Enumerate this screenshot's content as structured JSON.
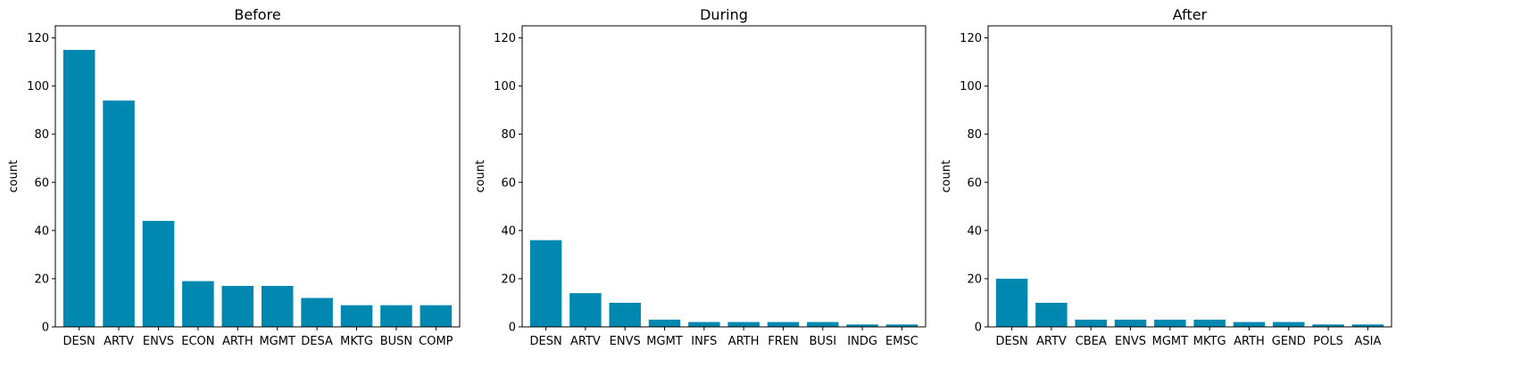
{
  "style": {
    "bar_color": "#0088b0",
    "axis_color": "#000000",
    "background": "#ffffff"
  },
  "chart_data": [
    {
      "type": "bar",
      "title": "Before",
      "xlabel": "",
      "ylabel": "count",
      "ylim": [
        0,
        125
      ],
      "yticks": [
        0,
        20,
        40,
        60,
        80,
        100,
        120
      ],
      "grid": false,
      "categories": [
        "DESN",
        "ARTV",
        "ENVS",
        "ECON",
        "ARTH",
        "MGMT",
        "DESA",
        "MKTG",
        "BUSN",
        "COMP"
      ],
      "values": [
        115,
        94,
        44,
        19,
        17,
        17,
        12,
        9,
        9,
        9
      ]
    },
    {
      "type": "bar",
      "title": "During",
      "xlabel": "",
      "ylabel": "count",
      "ylim": [
        0,
        125
      ],
      "yticks": [
        0,
        20,
        40,
        60,
        80,
        100,
        120
      ],
      "grid": false,
      "categories": [
        "DESN",
        "ARTV",
        "ENVS",
        "MGMT",
        "INFS",
        "ARTH",
        "FREN",
        "BUSI",
        "INDG",
        "EMSC"
      ],
      "values": [
        36,
        14,
        10,
        3,
        2,
        2,
        2,
        2,
        1,
        1
      ]
    },
    {
      "type": "bar",
      "title": "After",
      "xlabel": "",
      "ylabel": "count",
      "ylim": [
        0,
        125
      ],
      "yticks": [
        0,
        20,
        40,
        60,
        80,
        100,
        120
      ],
      "grid": false,
      "categories": [
        "DESN",
        "ARTV",
        "CBEA",
        "ENVS",
        "MGMT",
        "MKTG",
        "ARTH",
        "GEND",
        "POLS",
        "ASIA"
      ],
      "values": [
        20,
        10,
        3,
        3,
        3,
        3,
        2,
        2,
        1,
        1
      ]
    }
  ]
}
